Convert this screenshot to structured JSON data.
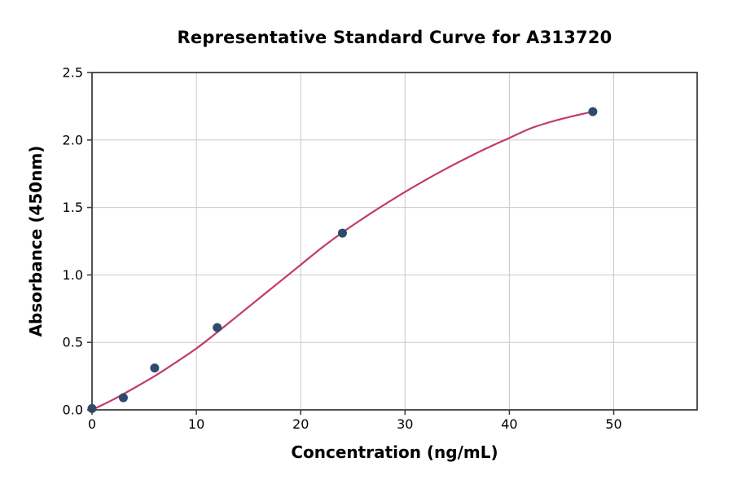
{
  "chart_data": {
    "type": "scatter",
    "title": "Representative Standard Curve for A313720",
    "xlabel": "Concentration (ng/mL)",
    "ylabel": "Absorbance (450nm)",
    "xlim": [
      0,
      58
    ],
    "ylim": [
      0,
      2.5
    ],
    "xticks": [
      {
        "value": 0,
        "label": "0"
      },
      {
        "value": 10,
        "label": "10"
      },
      {
        "value": 20,
        "label": "20"
      },
      {
        "value": 30,
        "label": "30"
      },
      {
        "value": 40,
        "label": "40"
      },
      {
        "value": 50,
        "label": "50"
      }
    ],
    "yticks": [
      {
        "value": 0,
        "label": "0.0"
      },
      {
        "value": 0.5,
        "label": "0.5"
      },
      {
        "value": 1,
        "label": "1.0"
      },
      {
        "value": 1.5,
        "label": "1.5"
      },
      {
        "value": 2,
        "label": "2.0"
      },
      {
        "value": 2.5,
        "label": "2.5"
      }
    ],
    "grid": true,
    "legend": "none",
    "series": [
      {
        "name": "standard-points",
        "type": "scatter",
        "color": "#2f4b6b",
        "marker_radius": 5.5,
        "points": [
          [
            0,
            0.01
          ],
          [
            3,
            0.09
          ],
          [
            6,
            0.31
          ],
          [
            12,
            0.61
          ],
          [
            24,
            1.31
          ],
          [
            48,
            2.21
          ]
        ]
      },
      {
        "name": "fit-curve",
        "type": "line",
        "color": "#c23b67",
        "line_width": 2.2,
        "points": [
          [
            0,
            0.0
          ],
          [
            2,
            0.075
          ],
          [
            4,
            0.16
          ],
          [
            6,
            0.25
          ],
          [
            8,
            0.35
          ],
          [
            10,
            0.455
          ],
          [
            12,
            0.575
          ],
          [
            14,
            0.7
          ],
          [
            16,
            0.825
          ],
          [
            18,
            0.95
          ],
          [
            20,
            1.075
          ],
          [
            22,
            1.2
          ],
          [
            24,
            1.315
          ],
          [
            26,
            1.42
          ],
          [
            28,
            1.52
          ],
          [
            30,
            1.615
          ],
          [
            32,
            1.705
          ],
          [
            34,
            1.79
          ],
          [
            36,
            1.87
          ],
          [
            38,
            1.945
          ],
          [
            40,
            2.015
          ],
          [
            42,
            2.085
          ],
          [
            44,
            2.135
          ],
          [
            46,
            2.175
          ],
          [
            48,
            2.21
          ]
        ]
      }
    ],
    "colors": {
      "background": "#ffffff",
      "grid": "#c9c9c9",
      "spine": "#3f3f3f",
      "tick_text": "#000000",
      "marker": "#2f4b6b",
      "line": "#c23b67"
    }
  }
}
